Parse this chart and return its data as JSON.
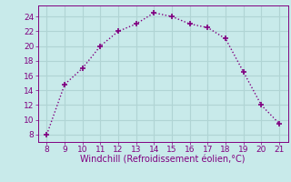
{
  "x": [
    8,
    9,
    10,
    11,
    12,
    13,
    14,
    15,
    16,
    17,
    18,
    19,
    20,
    21
  ],
  "y": [
    8,
    14.8,
    17,
    20,
    22,
    23,
    24.5,
    24,
    23,
    22.5,
    21,
    16.5,
    12,
    9.5
  ],
  "line_color": "#800080",
  "marker": "+",
  "marker_size": 5,
  "line_width": 1,
  "line_style": ":",
  "xlabel": "Windchill (Refroidissement éolien,°C)",
  "xlabel_color": "#800080",
  "xlabel_fontsize": 7,
  "xlim": [
    7.5,
    21.5
  ],
  "ylim": [
    7,
    25.5
  ],
  "xticks": [
    8,
    9,
    10,
    11,
    12,
    13,
    14,
    15,
    16,
    17,
    18,
    19,
    20,
    21
  ],
  "yticks": [
    8,
    10,
    12,
    14,
    16,
    18,
    20,
    22,
    24
  ],
  "tick_color": "#800080",
  "tick_fontsize": 6.5,
  "background_color": "#c8eaea",
  "grid_color": "#b0d4d4",
  "grid_linewidth": 0.8,
  "spine_color": "#800080"
}
